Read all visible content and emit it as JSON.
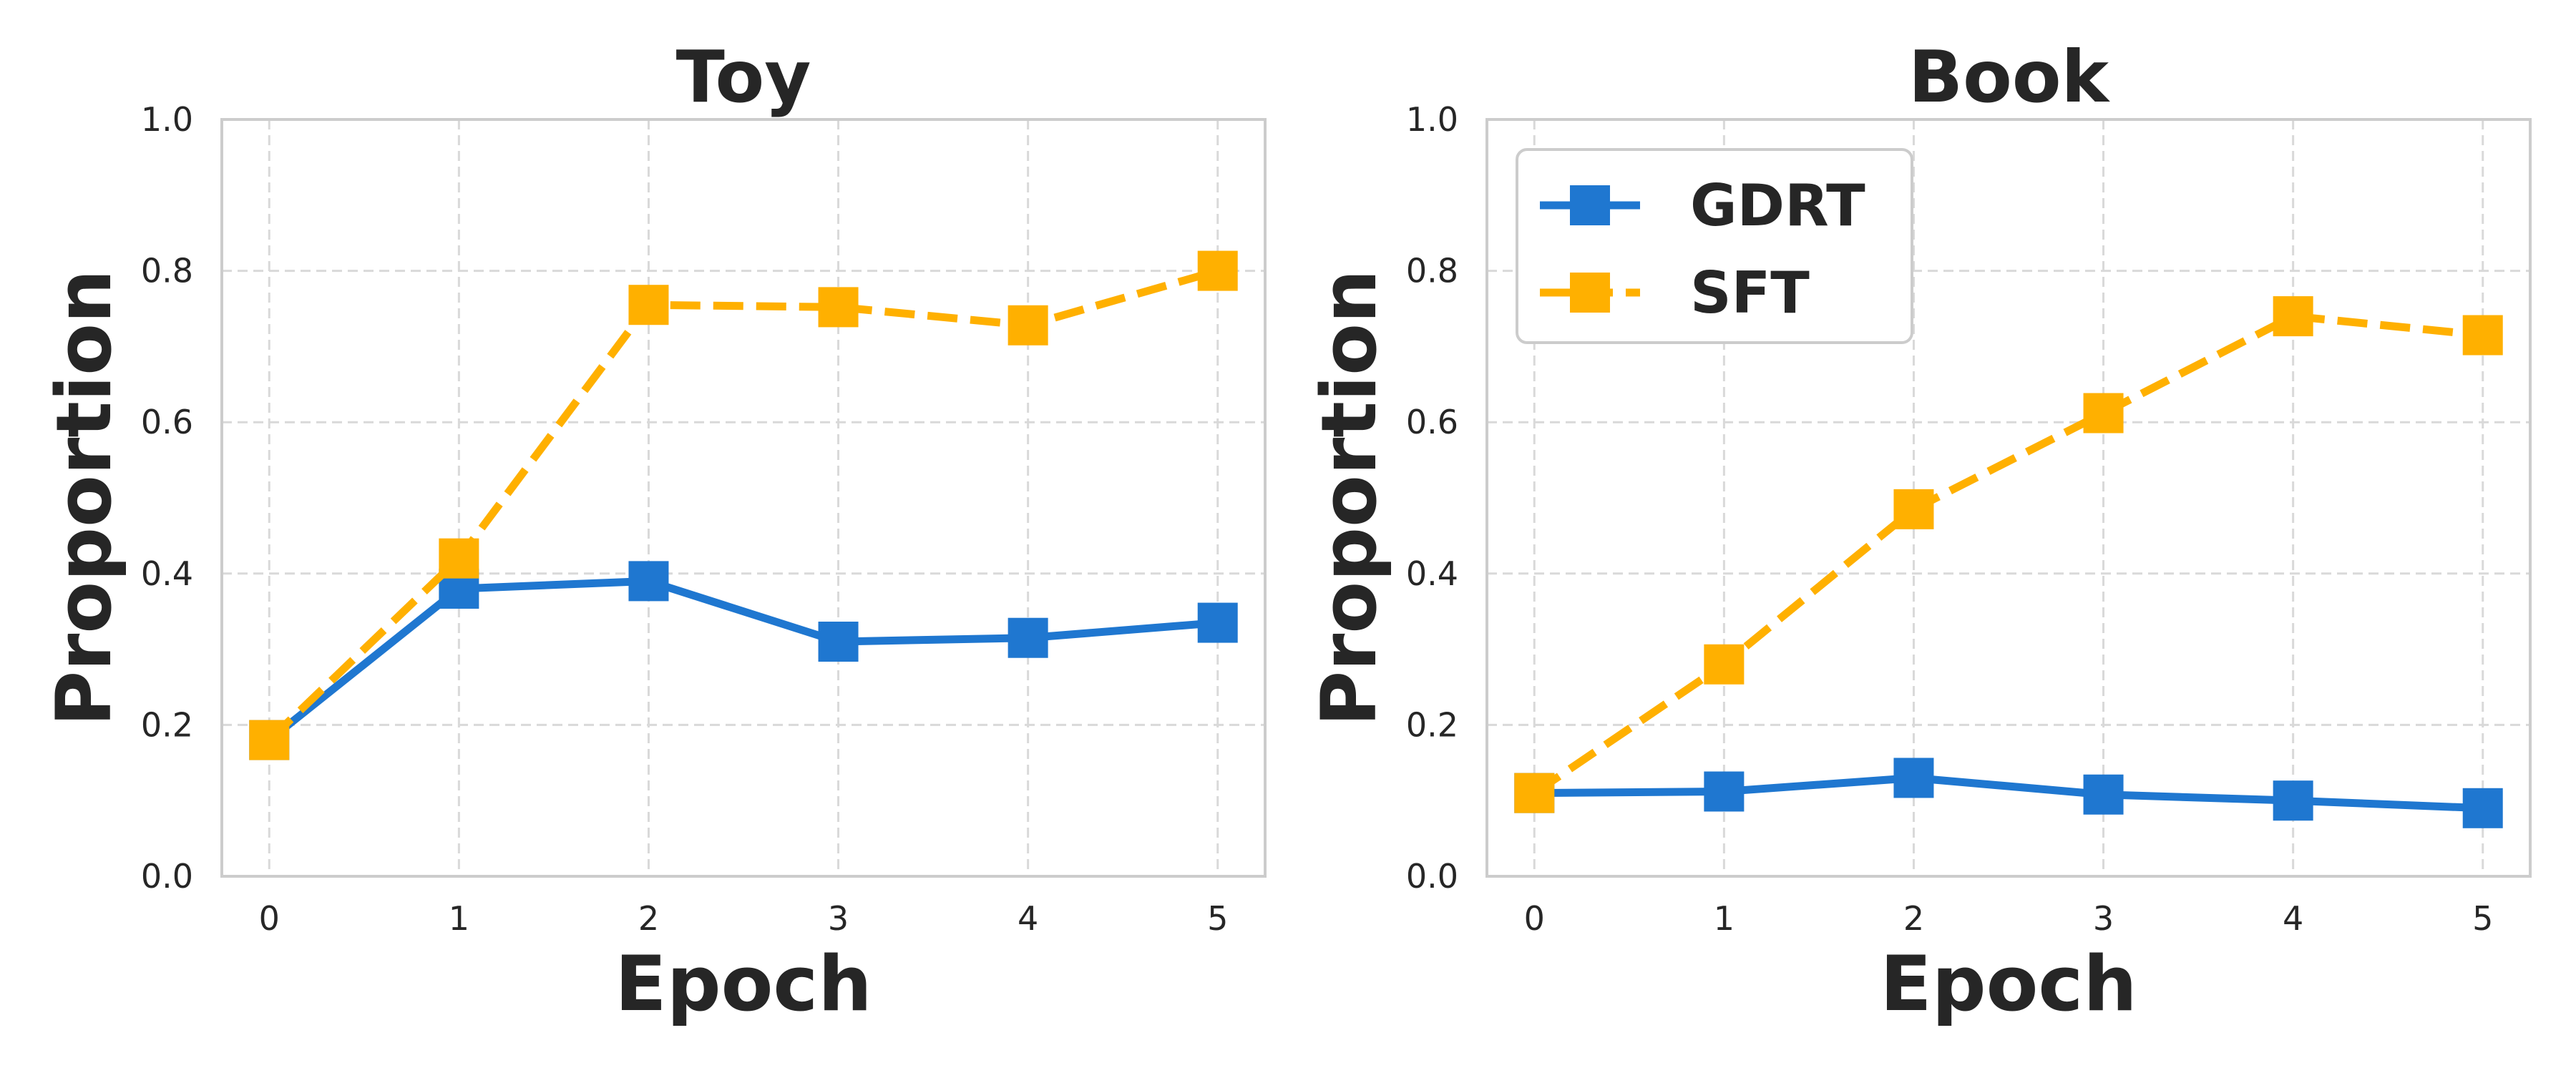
{
  "colors": {
    "gdrt": "#1f77d0",
    "sft": "#ffb000",
    "grid": "#d9d9d9",
    "frame": "#cccccc"
  },
  "chart_data": [
    {
      "type": "line",
      "title": "Toy",
      "xlabel": "Epoch",
      "ylabel": "Proportion",
      "x": [
        0,
        1,
        2,
        3,
        4,
        5
      ],
      "ylim": [
        0.0,
        1.0
      ],
      "yticks": [
        "0.0",
        "0.2",
        "0.4",
        "0.6",
        "0.8",
        "1.0"
      ],
      "xticks": [
        "0",
        "1",
        "2",
        "3",
        "4",
        "5"
      ],
      "grid": true,
      "legend": null,
      "series": [
        {
          "name": "GDRT",
          "style": "solid",
          "marker": "square",
          "color": "#1f77d0",
          "values": [
            0.18,
            0.38,
            0.39,
            0.31,
            0.315,
            0.335
          ]
        },
        {
          "name": "SFT",
          "style": "dashed",
          "marker": "square",
          "color": "#ffb000",
          "values": [
            0.18,
            0.42,
            0.755,
            0.752,
            0.728,
            0.8
          ]
        }
      ]
    },
    {
      "type": "line",
      "title": "Book",
      "xlabel": "Epoch",
      "ylabel": "Proportion",
      "x": [
        0,
        1,
        2,
        3,
        4,
        5
      ],
      "ylim": [
        0.0,
        1.0
      ],
      "yticks": [
        "0.0",
        "0.2",
        "0.4",
        "0.6",
        "0.8",
        "1.0"
      ],
      "xticks": [
        "0",
        "1",
        "2",
        "3",
        "4",
        "5"
      ],
      "grid": true,
      "legend": "top-left",
      "series": [
        {
          "name": "GDRT",
          "style": "solid",
          "marker": "square",
          "color": "#1f77d0",
          "values": [
            0.11,
            0.112,
            0.13,
            0.108,
            0.1,
            0.09
          ]
        },
        {
          "name": "SFT",
          "style": "dashed",
          "marker": "square",
          "color": "#ffb000",
          "values": [
            0.11,
            0.28,
            0.485,
            0.612,
            0.74,
            0.715
          ]
        }
      ]
    }
  ]
}
